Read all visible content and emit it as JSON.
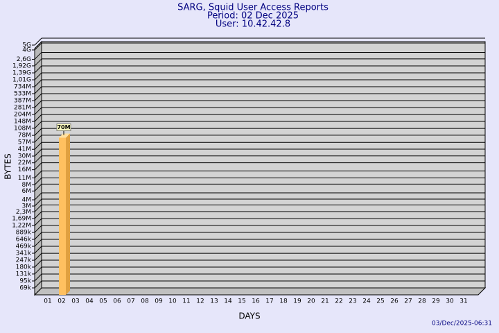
{
  "chart_data": {
    "type": "bar",
    "title": "SARG, Squid User Access Reports",
    "subtitle": "Period: 02 Dec 2025",
    "user": "User: 10.42.42.8",
    "ylabel": "BYTES",
    "xlabel": "DAYS",
    "footer": "03/Dec/2025-06:31",
    "categories": [
      "01",
      "02",
      "03",
      "04",
      "05",
      "06",
      "07",
      "08",
      "09",
      "10",
      "11",
      "12",
      "13",
      "14",
      "15",
      "16",
      "17",
      "18",
      "19",
      "20",
      "21",
      "22",
      "23",
      "24",
      "25",
      "26",
      "27",
      "28",
      "29",
      "30",
      "31"
    ],
    "values": [
      null,
      70000000,
      null,
      null,
      null,
      null,
      null,
      null,
      null,
      null,
      null,
      null,
      null,
      null,
      null,
      null,
      null,
      null,
      null,
      null,
      null,
      null,
      null,
      null,
      null,
      null,
      null,
      null,
      null,
      null,
      null
    ],
    "value_labels": [
      null,
      "70M",
      null,
      null,
      null,
      null,
      null,
      null,
      null,
      null,
      null,
      null,
      null,
      null,
      null,
      null,
      null,
      null,
      null,
      null,
      null,
      null,
      null,
      null,
      null,
      null,
      null,
      null,
      null,
      null,
      null
    ],
    "color": "#ffc060",
    "log_scale": true,
    "grid": true,
    "ylim": [
      50100,
      5000000000
    ],
    "yticks": [
      {
        "value": 69000,
        "label": "69k"
      },
      {
        "value": 95000,
        "label": "95k"
      },
      {
        "value": 131000,
        "label": "131k"
      },
      {
        "value": 180000,
        "label": "180k"
      },
      {
        "value": 247000,
        "label": "247k"
      },
      {
        "value": 341000,
        "label": "341k"
      },
      {
        "value": 469000,
        "label": "469k"
      },
      {
        "value": 646000,
        "label": "646k"
      },
      {
        "value": 889000,
        "label": "889k"
      },
      {
        "value": 1220000,
        "label": "1,22M"
      },
      {
        "value": 1690000,
        "label": "1,69M"
      },
      {
        "value": 2300000,
        "label": "2,3M"
      },
      {
        "value": 3000000,
        "label": "3M"
      },
      {
        "value": 4000000,
        "label": "4M"
      },
      {
        "value": 6000000,
        "label": "6M"
      },
      {
        "value": 8000000,
        "label": "8M"
      },
      {
        "value": 11000000,
        "label": "11M"
      },
      {
        "value": 16000000,
        "label": "16M"
      },
      {
        "value": 22000000,
        "label": "22M"
      },
      {
        "value": 30000000,
        "label": "30M"
      },
      {
        "value": 41000000,
        "label": "41M"
      },
      {
        "value": 57000000,
        "label": "57M"
      },
      {
        "value": 78000000,
        "label": "78M"
      },
      {
        "value": 108000000,
        "label": "108M"
      },
      {
        "value": 148000000,
        "label": "148M"
      },
      {
        "value": 204000000,
        "label": "204M"
      },
      {
        "value": 281000000,
        "label": "281M"
      },
      {
        "value": 387000000,
        "label": "387M"
      },
      {
        "value": 533000000,
        "label": "533M"
      },
      {
        "value": 734000000,
        "label": "734M"
      },
      {
        "value": 1010000000,
        "label": "1,01G"
      },
      {
        "value": 1390000000,
        "label": "1,39G"
      },
      {
        "value": 1920000000,
        "label": "1,92G"
      },
      {
        "value": 2600000000,
        "label": "2,6G"
      },
      {
        "value": 4000000000,
        "label": "4G"
      },
      {
        "value": 5000000000,
        "label": "5G"
      }
    ]
  }
}
